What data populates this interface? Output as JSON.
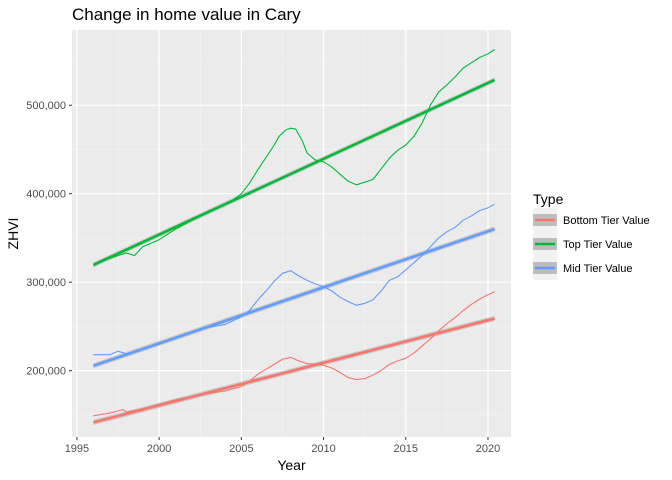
{
  "chart_data": {
    "type": "line",
    "title": "Change in home value in Cary",
    "xlabel": "Year",
    "ylabel": "ZHVI",
    "xlim": [
      1994.7,
      2021.4
    ],
    "ylim": [
      125000,
      585000
    ],
    "xticks": [
      1995,
      2000,
      2005,
      2010,
      2015,
      2020
    ],
    "xtick_labels": [
      "1995",
      "2000",
      "2005",
      "2010",
      "2015",
      "2020"
    ],
    "yticks": [
      200000,
      300000,
      400000,
      500000
    ],
    "ytick_labels": [
      "200,000",
      "300,000",
      "400,000",
      "500,000"
    ],
    "grid": true,
    "legend": {
      "title": "Type",
      "position": "right",
      "entries": [
        "Bottom Tier Value",
        "Top Tier Value",
        "Mid Tier Value"
      ]
    },
    "series": [
      {
        "name": "Bottom Tier Value",
        "color": "#F8766D",
        "x": [
          1996,
          1997,
          1997.8,
          1998,
          1999,
          2000,
          2001,
          2002,
          2003,
          2004,
          2005,
          2005.5,
          2006,
          2007,
          2007.5,
          2008,
          2008.5,
          2009,
          2009.5,
          2010,
          2010.5,
          2011,
          2011.5,
          2012,
          2012.5,
          2013,
          2013.5,
          2014,
          2014.5,
          2015,
          2015.5,
          2016,
          2016.5,
          2017,
          2017.5,
          2018,
          2018.5,
          2019,
          2019.5,
          2020,
          2020.4
        ],
        "y": [
          149000,
          152000,
          156000,
          153000,
          157000,
          162000,
          167000,
          171000,
          174000,
          177000,
          182000,
          188000,
          196000,
          207000,
          213000,
          215000,
          211000,
          208000,
          207000,
          206000,
          203000,
          198000,
          192000,
          190000,
          191000,
          195000,
          200000,
          207000,
          211000,
          214000,
          220000,
          228000,
          236000,
          245000,
          253000,
          260000,
          268000,
          275000,
          281000,
          286000,
          289000
        ],
        "trend": [
          141500,
          259000
        ]
      },
      {
        "name": "Top Tier Value",
        "color": "#00BA38",
        "x": [
          1996,
          1996.5,
          1997,
          1997.5,
          1998,
          1998.5,
          1999,
          2000,
          2001,
          2002,
          2003,
          2004,
          2004.5,
          2005,
          2005.5,
          2006,
          2006.5,
          2007,
          2007.3,
          2007.7,
          2008,
          2008.3,
          2008.7,
          2009,
          2009.5,
          2010,
          2010.5,
          2011,
          2011.5,
          2012,
          2012.5,
          2013,
          2013.5,
          2014,
          2014.5,
          2015,
          2015.5,
          2016,
          2016.5,
          2017,
          2017.5,
          2018,
          2018.5,
          2019,
          2019.5,
          2020,
          2020.4
        ],
        "y": [
          320000,
          324000,
          327000,
          330000,
          333000,
          330000,
          340000,
          348000,
          360000,
          370000,
          379000,
          388000,
          393000,
          400000,
          412000,
          427000,
          441000,
          455000,
          465000,
          472000,
          474000,
          473000,
          460000,
          446000,
          438000,
          436000,
          430000,
          422000,
          414000,
          410000,
          413000,
          416000,
          428000,
          440000,
          449000,
          455000,
          465000,
          480000,
          500000,
          515000,
          523000,
          532000,
          542000,
          548000,
          554000,
          558000,
          563000
        ],
        "trend": [
          319500,
          528500
        ]
      },
      {
        "name": "Mid Tier Value",
        "color": "#619CFF",
        "x": [
          1996,
          1997,
          1997.5,
          1998,
          1999,
          2000,
          2001,
          2002,
          2003,
          2004,
          2005,
          2005.5,
          2006,
          2006.5,
          2007,
          2007.5,
          2008,
          2008.5,
          2009,
          2009.5,
          2010,
          2010.5,
          2011,
          2011.5,
          2012,
          2012.5,
          2013,
          2013.5,
          2014,
          2014.5,
          2015,
          2015.5,
          2016,
          2016.5,
          2017,
          2017.5,
          2018,
          2018.5,
          2019,
          2019.5,
          2020,
          2020.4
        ],
        "y": [
          218000,
          218000,
          222000,
          219000,
          224000,
          230000,
          238000,
          244000,
          249000,
          252000,
          261000,
          268000,
          280000,
          290000,
          301000,
          310000,
          313000,
          307000,
          302000,
          298000,
          295000,
          290000,
          283000,
          278000,
          274000,
          276000,
          280000,
          290000,
          302000,
          306000,
          314000,
          322000,
          330000,
          340000,
          350000,
          357000,
          362000,
          370000,
          375000,
          381000,
          384000,
          388000
        ],
        "trend": [
          205500,
          360000
        ]
      }
    ]
  }
}
